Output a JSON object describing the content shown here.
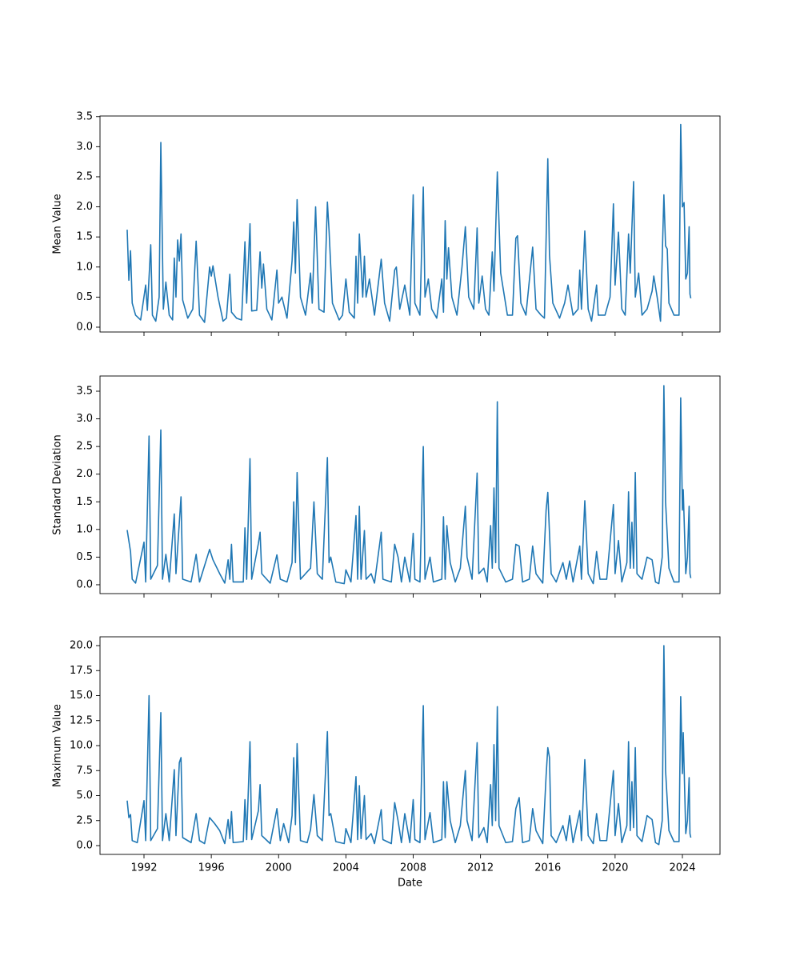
{
  "chart_data": [
    {
      "type": "line",
      "ylabel": "Mean Value",
      "color": "#1f77b4",
      "xlim": [
        1989.385,
        2026.235
      ],
      "ylim": [
        -0.08,
        3.51
      ],
      "yticks": [
        {
          "value": 0,
          "label": "0.0"
        },
        0.5,
        {
          "value": 1,
          "label": "1.0"
        },
        1.5,
        {
          "value": 2,
          "label": "2.0"
        },
        2.5,
        {
          "value": 3,
          "label": "3.0"
        },
        3.5
      ],
      "x": [
        1991.0,
        1991.1,
        1991.2,
        1991.3,
        1991.5,
        1991.8,
        1992.1,
        1992.2,
        1992.4,
        1992.5,
        1992.7,
        1992.9,
        1993.0,
        1993.15,
        1993.3,
        1993.5,
        1993.7,
        1993.8,
        1993.9,
        1994.0,
        1994.1,
        1994.2,
        1994.3,
        1994.6,
        1994.9,
        1995.1,
        1995.3,
        1995.6,
        1995.9,
        1996.0,
        1996.1,
        1996.4,
        1996.7,
        1996.9,
        1997.1,
        1997.2,
        1997.5,
        1997.8,
        1998.0,
        1998.1,
        1998.3,
        1998.4,
        1998.7,
        1998.9,
        1999.0,
        1999.1,
        1999.3,
        1999.6,
        1999.9,
        2000.0,
        2000.2,
        2000.5,
        2000.8,
        2000.9,
        2001.0,
        2001.1,
        2001.3,
        2001.6,
        2001.9,
        2002.0,
        2002.2,
        2002.4,
        2002.7,
        2002.9,
        2003.0,
        2003.2,
        2003.6,
        2003.8,
        2004.0,
        2004.2,
        2004.5,
        2004.6,
        2004.7,
        2004.8,
        2005.0,
        2005.1,
        2005.2,
        2005.4,
        2005.7,
        2006.1,
        2006.3,
        2006.6,
        2006.9,
        2007.0,
        2007.2,
        2007.5,
        2007.8,
        2008.0,
        2008.1,
        2008.4,
        2008.6,
        2008.7,
        2008.9,
        2009.1,
        2009.4,
        2009.7,
        2009.8,
        2009.9,
        2010.0,
        2010.1,
        2010.3,
        2010.6,
        2010.9,
        2011.1,
        2011.3,
        2011.6,
        2011.8,
        2011.9,
        2012.1,
        2012.3,
        2012.5,
        2012.7,
        2012.8,
        2012.9,
        2013.0,
        2013.2,
        2013.6,
        2013.9,
        2014.1,
        2014.2,
        2014.4,
        2014.7,
        2015.1,
        2015.3,
        2015.6,
        2015.8,
        2016.0,
        2016.1,
        2016.3,
        2016.7,
        2017.0,
        2017.2,
        2017.5,
        2017.8,
        2017.9,
        2018.0,
        2018.2,
        2018.4,
        2018.6,
        2018.9,
        2019.0,
        2019.4,
        2019.7,
        2019.9,
        2020.0,
        2020.2,
        2020.4,
        2020.6,
        2020.8,
        2020.9,
        2021.1,
        2021.2,
        2021.4,
        2021.6,
        2021.9,
        2022.2,
        2022.3,
        2022.5,
        2022.7,
        2022.9,
        2023.0,
        2023.1,
        2023.2,
        2023.5,
        2023.8,
        2023.9,
        2024.0,
        2024.1,
        2024.2,
        2024.3,
        2024.4,
        2024.45,
        2024.5
      ],
      "values": [
        1.62,
        0.78,
        1.27,
        0.4,
        0.2,
        0.12,
        0.7,
        0.28,
        1.37,
        0.2,
        0.1,
        0.5,
        3.07,
        0.3,
        0.75,
        0.2,
        0.12,
        1.15,
        0.5,
        1.45,
        1.1,
        1.55,
        0.45,
        0.15,
        0.3,
        1.43,
        0.2,
        0.08,
        1.0,
        0.85,
        1.02,
        0.5,
        0.1,
        0.15,
        0.88,
        0.25,
        0.15,
        0.12,
        1.42,
        0.4,
        1.72,
        0.27,
        0.28,
        1.25,
        0.65,
        1.05,
        0.3,
        0.12,
        0.95,
        0.4,
        0.5,
        0.15,
        1.1,
        1.75,
        0.9,
        2.12,
        0.5,
        0.2,
        0.9,
        0.4,
        2.0,
        0.3,
        0.25,
        2.08,
        1.6,
        0.4,
        0.12,
        0.2,
        0.8,
        0.25,
        0.15,
        1.18,
        0.4,
        1.55,
        0.5,
        1.18,
        0.5,
        0.8,
        0.2,
        1.13,
        0.4,
        0.1,
        0.95,
        1.0,
        0.3,
        0.7,
        0.2,
        2.2,
        0.4,
        0.2,
        2.33,
        0.5,
        0.8,
        0.3,
        0.15,
        0.8,
        0.25,
        1.77,
        0.8,
        1.32,
        0.5,
        0.2,
        1.0,
        1.67,
        0.5,
        0.3,
        1.65,
        0.4,
        0.85,
        0.3,
        0.2,
        1.25,
        0.6,
        1.6,
        2.58,
        0.9,
        0.2,
        0.2,
        1.48,
        1.52,
        0.4,
        0.2,
        1.33,
        0.3,
        0.2,
        0.15,
        2.8,
        1.2,
        0.4,
        0.15,
        0.4,
        0.7,
        0.2,
        0.3,
        0.95,
        0.3,
        1.6,
        0.3,
        0.1,
        0.7,
        0.2,
        0.2,
        0.5,
        2.05,
        0.7,
        1.58,
        0.3,
        0.2,
        1.55,
        0.9,
        2.42,
        0.5,
        0.9,
        0.2,
        0.3,
        0.6,
        0.85,
        0.5,
        0.1,
        2.2,
        1.35,
        1.3,
        0.4,
        0.2,
        0.2,
        3.37,
        2.0,
        2.07,
        0.8,
        0.9,
        1.67,
        0.55,
        0.48
      ]
    },
    {
      "type": "line",
      "ylabel": "Standard Deviation",
      "color": "#1f77b4",
      "xlim": [
        1989.385,
        2026.235
      ],
      "ylim": [
        -0.16,
        3.775
      ],
      "yticks": [
        {
          "value": 0,
          "label": "0.0"
        },
        0.5,
        {
          "value": 1,
          "label": "1.0"
        },
        1.5,
        {
          "value": 2,
          "label": "2.0"
        },
        2.5,
        {
          "value": 3,
          "label": "3.0"
        },
        3.5
      ],
      "x": [
        1991.0,
        1991.2,
        1991.3,
        1991.5,
        1992.0,
        1992.1,
        1992.3,
        1992.4,
        1992.8,
        1993.0,
        1993.1,
        1993.3,
        1993.5,
        1993.8,
        1993.9,
        1994.2,
        1994.3,
        1994.8,
        1995.1,
        1995.3,
        1995.9,
        1996.1,
        1996.5,
        1996.8,
        1997.0,
        1997.1,
        1997.2,
        1997.3,
        1997.9,
        1998.0,
        1998.1,
        1998.3,
        1998.4,
        1998.8,
        1998.9,
        1999.0,
        1999.5,
        1999.9,
        2000.1,
        2000.5,
        2000.8,
        2000.9,
        2001.0,
        2001.1,
        2001.3,
        2001.9,
        2002.1,
        2002.3,
        2002.6,
        2002.9,
        2003.0,
        2003.1,
        2003.4,
        2003.9,
        2004.0,
        2004.3,
        2004.6,
        2004.7,
        2004.8,
        2004.9,
        2005.1,
        2005.2,
        2005.5,
        2005.7,
        2006.1,
        2006.2,
        2006.7,
        2006.9,
        2007.1,
        2007.3,
        2007.5,
        2007.8,
        2008.0,
        2008.1,
        2008.4,
        2008.6,
        2008.7,
        2009.0,
        2009.2,
        2009.7,
        2009.8,
        2009.9,
        2010.0,
        2010.2,
        2010.5,
        2010.8,
        2011.1,
        2011.2,
        2011.5,
        2011.8,
        2011.9,
        2012.2,
        2012.4,
        2012.6,
        2012.7,
        2012.8,
        2012.9,
        2013.0,
        2013.1,
        2013.5,
        2013.9,
        2014.1,
        2014.3,
        2014.5,
        2014.9,
        2015.1,
        2015.3,
        2015.7,
        2015.9,
        2016.0,
        2016.2,
        2016.5,
        2016.9,
        2017.1,
        2017.3,
        2017.5,
        2017.9,
        2018.0,
        2018.2,
        2018.4,
        2018.7,
        2018.9,
        2019.1,
        2019.5,
        2019.9,
        2020.0,
        2020.2,
        2020.4,
        2020.7,
        2020.8,
        2020.9,
        2021.0,
        2021.1,
        2021.2,
        2021.3,
        2021.6,
        2021.9,
        2022.2,
        2022.4,
        2022.6,
        2022.8,
        2022.9,
        2023.0,
        2023.2,
        2023.5,
        2023.8,
        2023.9,
        2024.0,
        2024.05,
        2024.2,
        2024.3,
        2024.4,
        2024.45,
        2024.5
      ],
      "values": [
        0.99,
        0.6,
        0.1,
        0.03,
        0.77,
        0.05,
        2.69,
        0.1,
        0.35,
        2.8,
        0.1,
        0.55,
        0.05,
        1.28,
        0.2,
        1.59,
        0.1,
        0.05,
        0.55,
        0.05,
        0.64,
        0.45,
        0.2,
        0.03,
        0.45,
        0.1,
        0.73,
        0.05,
        0.05,
        1.03,
        0.1,
        2.28,
        0.1,
        0.75,
        0.95,
        0.2,
        0.03,
        0.54,
        0.1,
        0.05,
        0.4,
        1.5,
        0.4,
        2.03,
        0.1,
        0.3,
        1.5,
        0.2,
        0.1,
        2.3,
        0.4,
        0.5,
        0.05,
        0.02,
        0.27,
        0.05,
        1.25,
        0.1,
        1.42,
        0.1,
        0.98,
        0.1,
        0.2,
        0.03,
        0.95,
        0.1,
        0.05,
        0.73,
        0.5,
        0.05,
        0.5,
        0.05,
        0.93,
        0.1,
        0.05,
        2.5,
        0.1,
        0.5,
        0.05,
        0.1,
        1.23,
        0.1,
        1.07,
        0.4,
        0.05,
        0.3,
        1.42,
        0.5,
        0.1,
        2.02,
        0.2,
        0.3,
        0.05,
        1.07,
        0.3,
        1.75,
        0.4,
        3.31,
        0.3,
        0.05,
        0.1,
        0.73,
        0.7,
        0.05,
        0.1,
        0.7,
        0.2,
        0.03,
        1.35,
        1.67,
        0.2,
        0.05,
        0.4,
        0.1,
        0.43,
        0.05,
        0.7,
        0.1,
        1.52,
        0.2,
        0.02,
        0.6,
        0.1,
        0.1,
        1.45,
        0.2,
        0.8,
        0.05,
        0.4,
        1.68,
        0.3,
        1.13,
        0.3,
        2.03,
        0.2,
        0.1,
        0.5,
        0.45,
        0.05,
        0.02,
        0.5,
        3.6,
        1.5,
        0.3,
        0.05,
        0.05,
        3.38,
        1.35,
        1.72,
        0.2,
        0.5,
        1.42,
        0.2,
        0.12
      ]
    },
    {
      "type": "line",
      "ylabel": "Maximum Value",
      "xlabel": "Date",
      "color": "#1f77b4",
      "xlim": [
        1989.385,
        2026.235
      ],
      "ylim": [
        -0.88,
        20.88
      ],
      "xticks": [
        1992,
        1996,
        2000,
        2004,
        2008,
        2012,
        2016,
        2020,
        2024
      ],
      "yticks": [
        {
          "value": 0,
          "label": "0.0"
        },
        2.5,
        {
          "value": 5,
          "label": "5.0"
        },
        7.5,
        {
          "value": 10,
          "label": "10.0"
        },
        12.5,
        {
          "value": 15,
          "label": "15.0"
        },
        17.5,
        {
          "value": 20,
          "label": "20.0"
        }
      ],
      "x": [
        1991.0,
        1991.1,
        1991.2,
        1991.3,
        1991.6,
        1992.0,
        1992.1,
        1992.3,
        1992.4,
        1992.8,
        1993.0,
        1993.1,
        1993.3,
        1993.5,
        1993.8,
        1993.9,
        1994.1,
        1994.2,
        1994.3,
        1994.8,
        1995.1,
        1995.3,
        1995.6,
        1995.9,
        1996.2,
        1996.5,
        1996.8,
        1997.0,
        1997.1,
        1997.2,
        1997.3,
        1997.9,
        1998.0,
        1998.1,
        1998.3,
        1998.4,
        1998.8,
        1998.9,
        1999.0,
        1999.5,
        1999.9,
        2000.1,
        2000.3,
        2000.6,
        2000.8,
        2000.9,
        2001.0,
        2001.1,
        2001.3,
        2001.7,
        2001.9,
        2002.1,
        2002.3,
        2002.6,
        2002.9,
        2003.0,
        2003.1,
        2003.4,
        2003.9,
        2004.0,
        2004.3,
        2004.6,
        2004.7,
        2004.8,
        2004.9,
        2005.1,
        2005.2,
        2005.5,
        2005.7,
        2006.1,
        2006.2,
        2006.7,
        2006.9,
        2007.1,
        2007.3,
        2007.5,
        2007.8,
        2008.0,
        2008.1,
        2008.4,
        2008.6,
        2008.7,
        2009.0,
        2009.2,
        2009.7,
        2009.8,
        2009.9,
        2010.0,
        2010.2,
        2010.5,
        2010.8,
        2011.1,
        2011.2,
        2011.5,
        2011.8,
        2011.9,
        2012.2,
        2012.4,
        2012.6,
        2012.7,
        2012.8,
        2012.9,
        2013.0,
        2013.1,
        2013.5,
        2013.9,
        2014.1,
        2014.3,
        2014.5,
        2014.9,
        2015.1,
        2015.3,
        2015.7,
        2015.9,
        2016.0,
        2016.1,
        2016.2,
        2016.5,
        2016.9,
        2017.1,
        2017.3,
        2017.5,
        2017.9,
        2018.0,
        2018.2,
        2018.4,
        2018.7,
        2018.9,
        2019.1,
        2019.5,
        2019.9,
        2020.0,
        2020.2,
        2020.4,
        2020.7,
        2020.8,
        2020.9,
        2021.0,
        2021.1,
        2021.2,
        2021.3,
        2021.6,
        2021.9,
        2022.2,
        2022.4,
        2022.6,
        2022.8,
        2022.9,
        2023.0,
        2023.2,
        2023.5,
        2023.8,
        2023.9,
        2024.0,
        2024.05,
        2024.2,
        2024.3,
        2024.4,
        2024.45,
        2024.5
      ],
      "values": [
        4.5,
        2.8,
        3.1,
        0.5,
        0.3,
        4.5,
        0.5,
        15.0,
        0.5,
        1.7,
        13.3,
        0.5,
        3.2,
        0.5,
        7.6,
        1.0,
        8.3,
        8.8,
        0.8,
        0.3,
        3.2,
        0.5,
        0.2,
        2.8,
        2.2,
        1.5,
        0.2,
        2.6,
        0.7,
        3.4,
        0.3,
        0.4,
        4.6,
        0.6,
        10.4,
        0.6,
        3.5,
        6.1,
        1.0,
        0.2,
        3.7,
        0.5,
        2.2,
        0.3,
        3.0,
        8.8,
        2.1,
        10.2,
        0.5,
        0.3,
        1.6,
        5.1,
        1.0,
        0.5,
        11.4,
        3.0,
        3.2,
        0.4,
        0.2,
        1.7,
        0.3,
        6.9,
        0.6,
        6.0,
        0.7,
        5.0,
        0.6,
        1.2,
        0.2,
        3.6,
        0.6,
        0.2,
        4.3,
        2.5,
        0.3,
        3.2,
        0.3,
        4.6,
        0.6,
        0.3,
        14.0,
        0.6,
        3.3,
        0.3,
        0.6,
        6.4,
        0.8,
        6.4,
        2.5,
        0.3,
        2.0,
        7.5,
        2.5,
        0.5,
        10.3,
        0.8,
        1.8,
        0.3,
        6.1,
        2.0,
        10.1,
        2.5,
        13.9,
        2.0,
        0.3,
        0.4,
        3.7,
        4.8,
        0.3,
        0.5,
        3.7,
        1.5,
        0.2,
        7.0,
        9.8,
        8.8,
        1.0,
        0.3,
        2.0,
        0.5,
        3.0,
        0.3,
        3.5,
        0.5,
        8.6,
        1.0,
        0.2,
        3.2,
        0.5,
        0.5,
        7.5,
        1.0,
        4.2,
        0.3,
        2.0,
        10.4,
        1.5,
        6.4,
        1.8,
        9.8,
        1.0,
        0.4,
        3.0,
        2.6,
        0.3,
        0.1,
        2.5,
        20.0,
        7.5,
        1.5,
        0.4,
        0.4,
        14.9,
        7.2,
        11.3,
        1.2,
        2.5,
        6.8,
        1.2,
        0.8
      ]
    }
  ]
}
